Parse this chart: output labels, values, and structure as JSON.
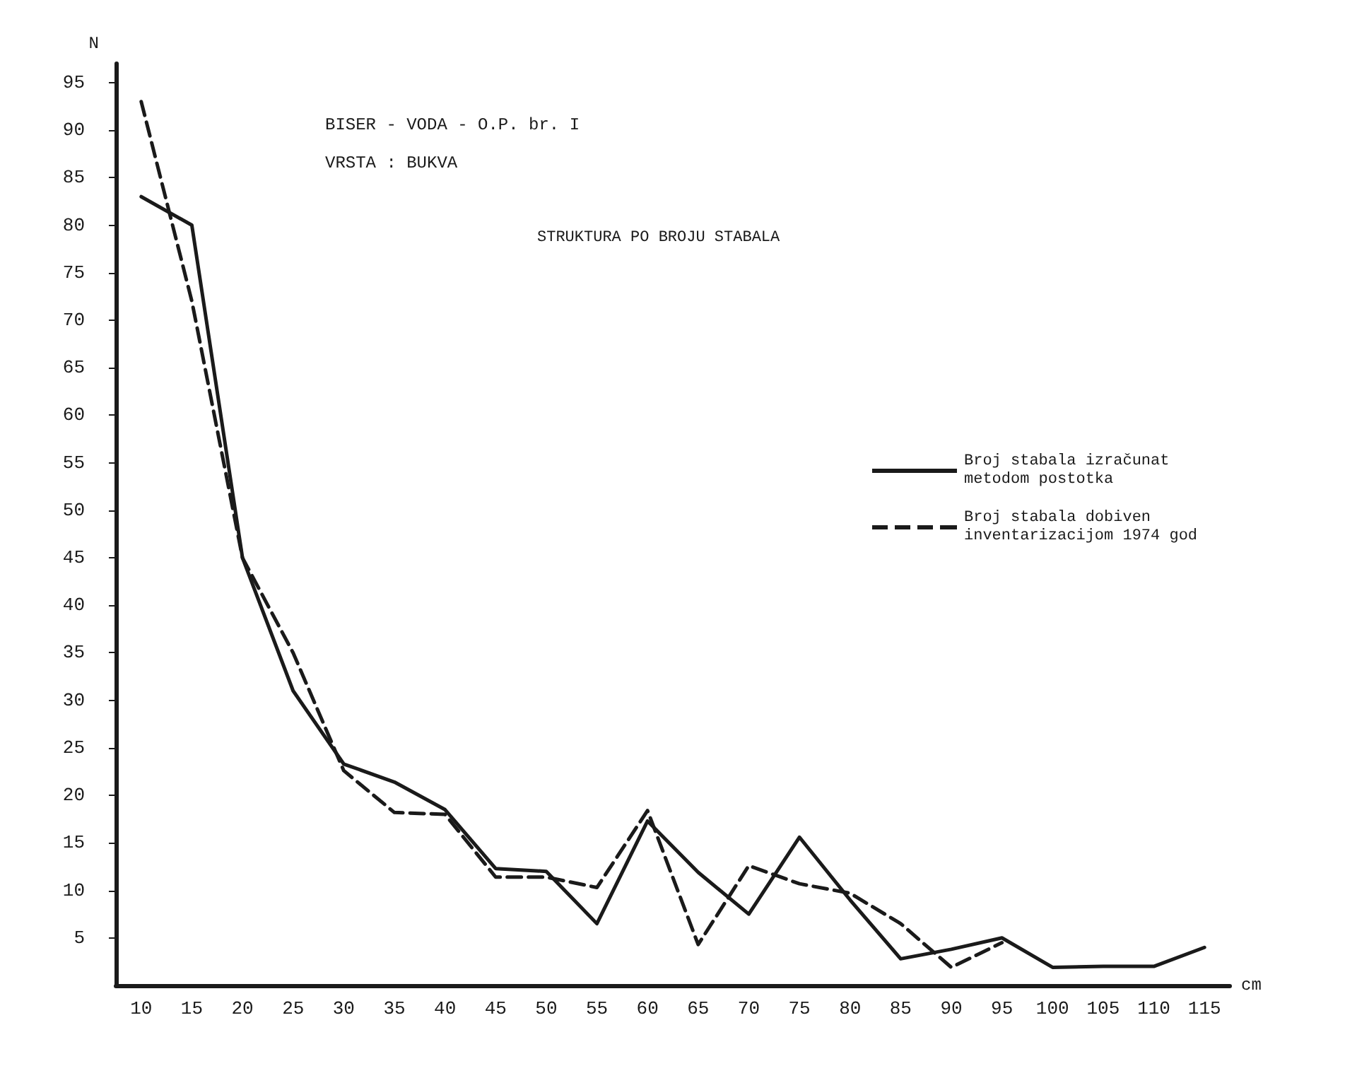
{
  "chart_data": {
    "type": "line",
    "title": "STRUKTURA PO BROJU STABALA",
    "subtitle": "BISER - VODA - O.P. br. I\nVRSTA : BUKVA",
    "xlabel": "cm",
    "ylabel": "N",
    "categories": [
      "10",
      "15",
      "20",
      "25",
      "30",
      "35",
      "40",
      "45",
      "50",
      "55",
      "60",
      "65",
      "70",
      "75",
      "80",
      "85",
      "90",
      "95",
      "100",
      "105",
      "110",
      "115"
    ],
    "series": [
      {
        "name": "Broj stabala izračunat metodom postotka",
        "color": "#1a1a1a",
        "line_style": "solid",
        "values": [
          83,
          80,
          45,
          31,
          23.3,
          21.4,
          18.5,
          12.3,
          12,
          6.5,
          17.3,
          11.9,
          7.5,
          15.6,
          9,
          2.8,
          3.8,
          5,
          1.9,
          2,
          2,
          4
        ]
      },
      {
        "name": "Broj stabala dobiven inventarizacijom 1974 god",
        "color": "#1a1a1a",
        "line_style": "dashed",
        "values": [
          93,
          72,
          45,
          35,
          22.6,
          18.2,
          18,
          11.4,
          11.4,
          10.3,
          18.4,
          4.3,
          12.6,
          10.7,
          9.7,
          6.5,
          1.9,
          4.5,
          null,
          null,
          null,
          null
        ]
      }
    ],
    "ylim": [
      0,
      97
    ],
    "yticks": [
      5,
      10,
      15,
      20,
      25,
      30,
      35,
      40,
      45,
      50,
      55,
      60,
      65,
      70,
      75,
      80,
      85,
      90,
      95
    ],
    "grid": false,
    "legend": "right",
    "marker": "none"
  }
}
